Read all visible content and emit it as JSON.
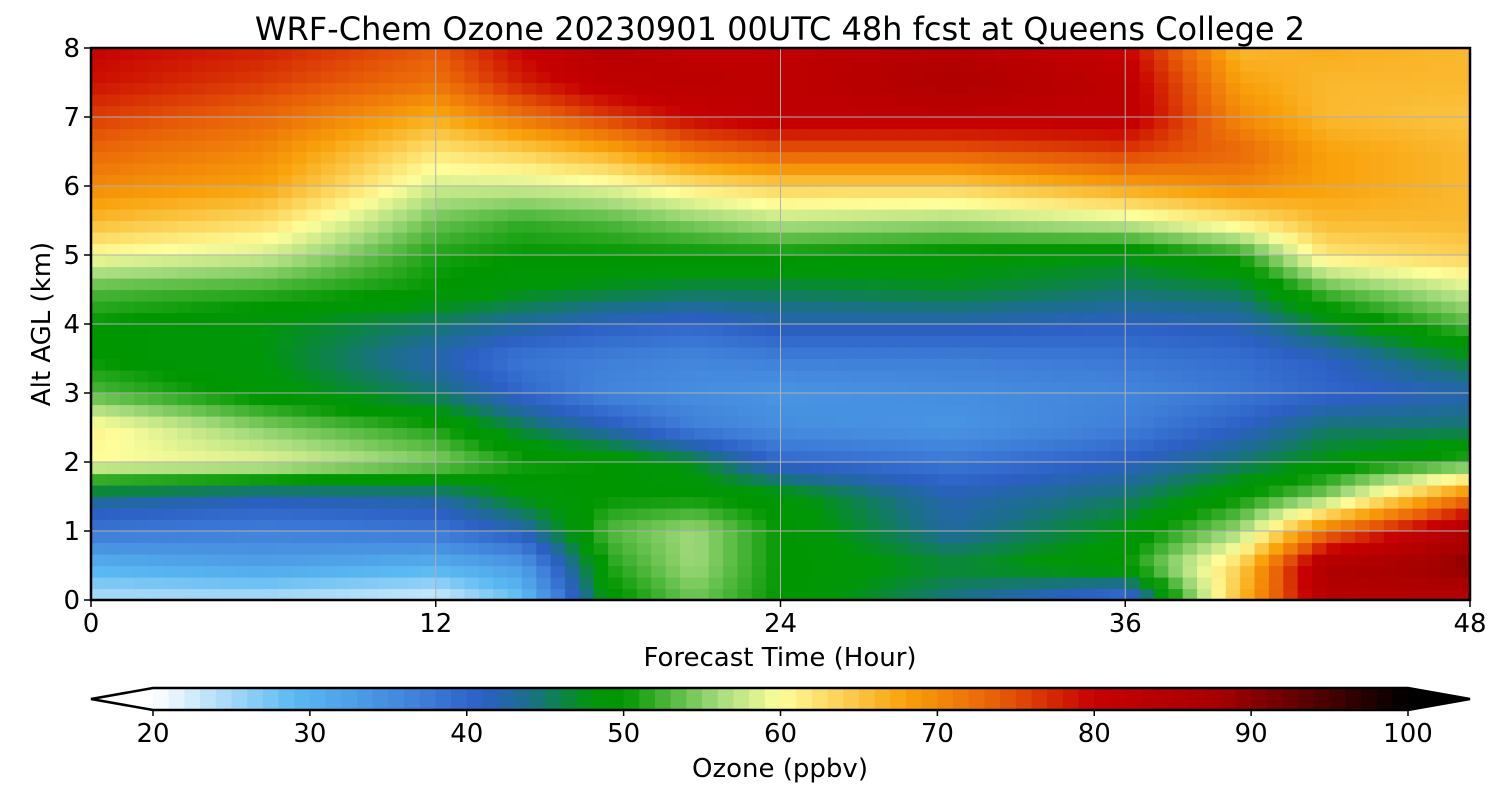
{
  "chart_data": {
    "type": "heatmap",
    "title": "WRF-Chem Ozone  20230901 00UTC 48h fcst at Queens College 2",
    "xlabel": "Forecast Time (Hour)",
    "ylabel": "Alt AGL (km)",
    "xlim": [
      0,
      48
    ],
    "ylim": [
      0,
      8
    ],
    "xticks": [
      "0",
      "12",
      "24",
      "36",
      "48"
    ],
    "yticks": [
      "0",
      "1",
      "2",
      "3",
      "4",
      "5",
      "6",
      "7",
      "8"
    ],
    "grid": true,
    "x": [
      0,
      6,
      12,
      15,
      18,
      21,
      24,
      30,
      36,
      40,
      43,
      48
    ],
    "y": [
      0,
      0.5,
      1,
      1.5,
      2,
      2.5,
      3,
      3.5,
      4,
      4.5,
      5,
      5.5,
      6,
      6.5,
      7,
      7.5,
      8
    ],
    "z": [
      [
        24,
        24,
        22,
        28,
        49,
        54,
        50,
        44,
        38,
        66,
        84,
        84
      ],
      [
        30,
        32,
        30,
        33,
        51,
        56,
        50,
        47,
        50,
        64,
        86,
        90
      ],
      [
        38,
        37,
        38,
        42,
        53,
        56,
        50,
        43,
        48,
        56,
        72,
        86
      ],
      [
        44,
        42,
        43,
        48,
        50,
        50,
        49,
        42,
        45,
        50,
        55,
        72
      ],
      [
        60,
        59,
        55,
        51,
        50,
        47,
        40,
        38,
        41,
        45,
        48,
        52
      ],
      [
        61,
        55,
        51,
        46,
        42,
        37,
        35,
        34,
        37,
        41,
        45,
        45
      ],
      [
        53,
        49,
        45,
        40,
        36,
        35,
        34,
        35,
        36,
        38,
        40,
        42
      ],
      [
        50,
        48,
        42,
        38,
        37,
        36,
        37,
        37,
        38,
        39,
        41,
        47
      ],
      [
        50,
        48,
        45,
        43,
        41,
        40,
        42,
        42,
        41,
        42,
        47,
        53
      ],
      [
        53,
        52,
        50,
        48,
        47,
        46,
        46,
        47,
        45,
        46,
        53,
        58
      ],
      [
        60,
        58,
        51,
        50,
        50,
        50,
        50,
        49,
        48,
        51,
        62,
        64
      ],
      [
        66,
        63,
        54,
        52,
        53,
        55,
        57,
        56,
        58,
        62,
        66,
        66
      ],
      [
        70,
        68,
        58,
        58,
        59,
        62,
        64,
        64,
        68,
        70,
        68,
        66
      ],
      [
        73,
        70,
        62,
        64,
        67,
        72,
        74,
        74,
        76,
        73,
        68,
        66
      ],
      [
        76,
        73,
        67,
        72,
        76,
        80,
        82,
        82,
        82,
        70,
        66,
        65
      ],
      [
        79,
        76,
        72,
        78,
        82,
        83,
        82,
        86,
        82,
        68,
        66,
        66
      ],
      [
        80,
        78,
        74,
        80,
        84,
        82,
        82,
        84,
        80,
        66,
        67,
        66
      ]
    ],
    "colorbar": {
      "label": "Ozone  (ppbv)",
      "min": 20,
      "max": 100,
      "ticks": [
        "20",
        "30",
        "40",
        "50",
        "60",
        "70",
        "80",
        "90",
        "100"
      ],
      "extend": "both",
      "stops": [
        {
          "v": 20,
          "c": "#ffffff"
        },
        {
          "v": 29,
          "c": "#5ab9f2"
        },
        {
          "v": 37,
          "c": "#3f7fd9"
        },
        {
          "v": 41,
          "c": "#2c5fc4"
        },
        {
          "v": 44,
          "c": "#1b6f8a"
        },
        {
          "v": 48,
          "c": "#00960a"
        },
        {
          "v": 50,
          "c": "#009600"
        },
        {
          "v": 56,
          "c": "#a3da7c"
        },
        {
          "v": 60,
          "c": "#fefe9c"
        },
        {
          "v": 68,
          "c": "#f9a10a"
        },
        {
          "v": 74,
          "c": "#e75c08"
        },
        {
          "v": 80,
          "c": "#c70000"
        },
        {
          "v": 88,
          "c": "#a60000"
        },
        {
          "v": 100,
          "c": "#000000"
        }
      ]
    }
  }
}
